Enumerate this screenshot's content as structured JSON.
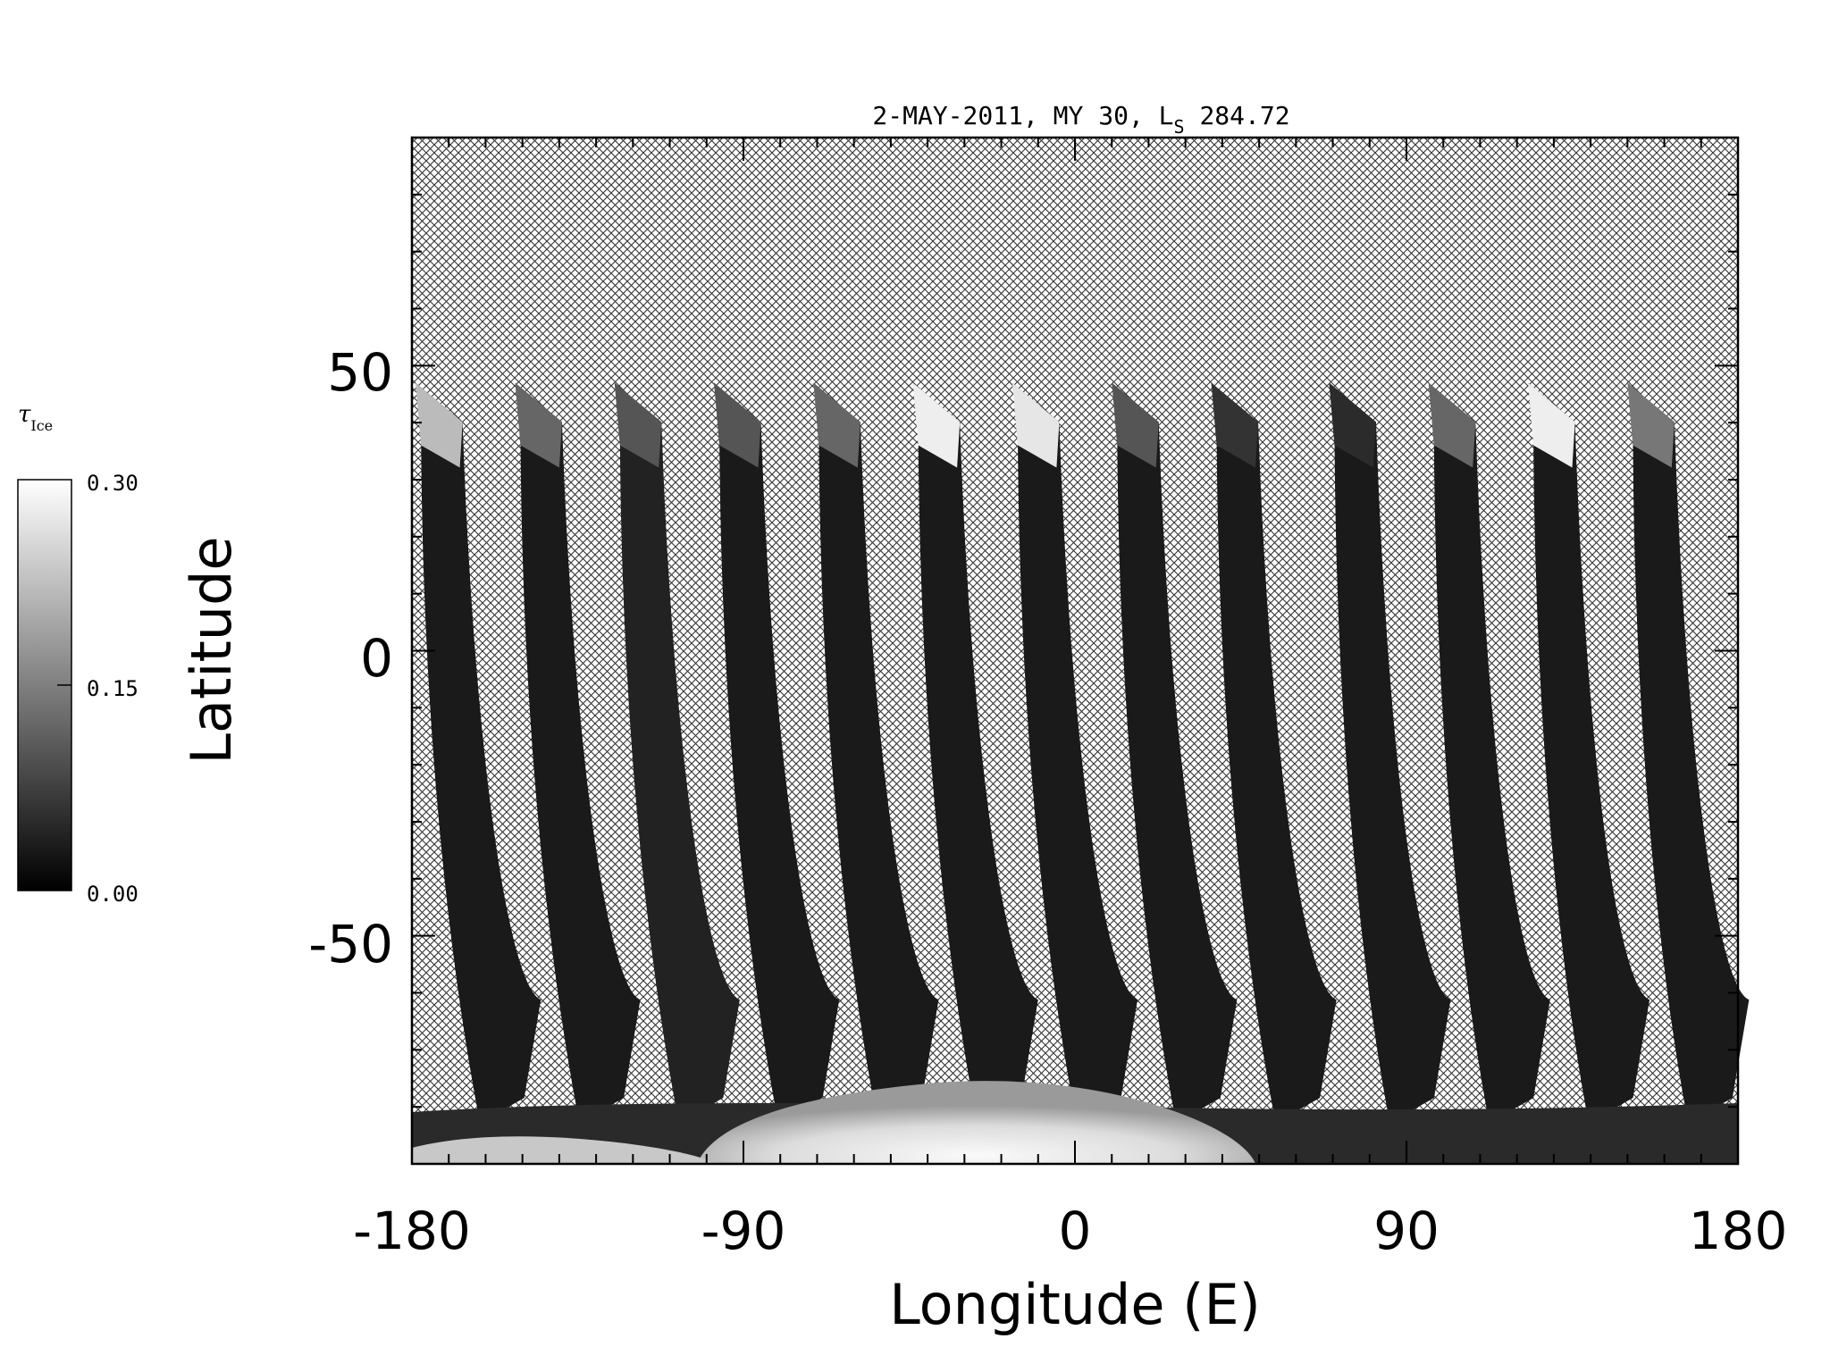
{
  "figure": {
    "title_main": "2-MAY-2011, MY 30,  L",
    "title_sub": "S",
    "title_value": " 284.72",
    "xlabel": "Longitude (E)",
    "ylabel": "Latitude",
    "colorbar": {
      "label_symbol": "τ",
      "label_sub": "Ice",
      "ticks": [
        "0.30",
        "0.15",
        "0.00"
      ],
      "range": [
        0.0,
        0.3
      ],
      "colormap": "grayscale (black to white)"
    },
    "background_pattern": "cross-hatched (no data)"
  },
  "chart_data": {
    "type": "heatmap",
    "title": "2-MAY-2011, MY 30, L_S 284.72",
    "xlabel": "Longitude (E)",
    "ylabel": "Latitude",
    "xlim": [
      -180,
      180
    ],
    "ylim": [
      -90,
      90
    ],
    "xticks": [
      "-180",
      "-90",
      "0",
      "90",
      "180"
    ],
    "yticks": [
      "50",
      "0",
      "-50"
    ],
    "x_tick_values": [
      -180,
      -90,
      0,
      90,
      180
    ],
    "y_tick_values": [
      50,
      0,
      -50
    ],
    "colorbar_range": [
      0.0,
      0.3
    ],
    "colorbar_label": "τ_Ice",
    "swaths": [
      {
        "lon_north": -179,
        "lon_south": -163,
        "value_north": 0.22,
        "value_body": 0.03
      },
      {
        "lon_north": -152,
        "lon_south": -136,
        "value_north": 0.12,
        "value_body": 0.03
      },
      {
        "lon_north": -125,
        "lon_south": -109,
        "value_north": 0.1,
        "value_body": 0.04
      },
      {
        "lon_north": -98,
        "lon_south": -82,
        "value_north": 0.1,
        "value_body": 0.03
      },
      {
        "lon_north": -71,
        "lon_south": -55,
        "value_north": 0.12,
        "value_body": 0.03
      },
      {
        "lon_north": -44,
        "lon_south": -28,
        "value_north": 0.28,
        "value_body": 0.03
      },
      {
        "lon_north": -17,
        "lon_south": -1,
        "value_north": 0.27,
        "value_body": 0.03
      },
      {
        "lon_north": 10,
        "lon_south": 26,
        "value_north": 0.1,
        "value_body": 0.03
      },
      {
        "lon_north": 37,
        "lon_south": 53,
        "value_north": 0.06,
        "value_body": 0.03
      },
      {
        "lon_north": 69,
        "lon_south": 84,
        "value_north": 0.05,
        "value_body": 0.03
      },
      {
        "lon_north": 96,
        "lon_south": 111,
        "value_north": 0.12,
        "value_body": 0.03
      },
      {
        "lon_north": 123,
        "lon_south": 138,
        "value_north": 0.28,
        "value_body": 0.03
      },
      {
        "lon_north": 150,
        "lon_south": 165,
        "value_north": 0.14,
        "value_body": 0.03
      }
    ],
    "south_polar_cap": {
      "lat_range": [
        -90,
        -70
      ],
      "value_max": 0.3
    }
  }
}
